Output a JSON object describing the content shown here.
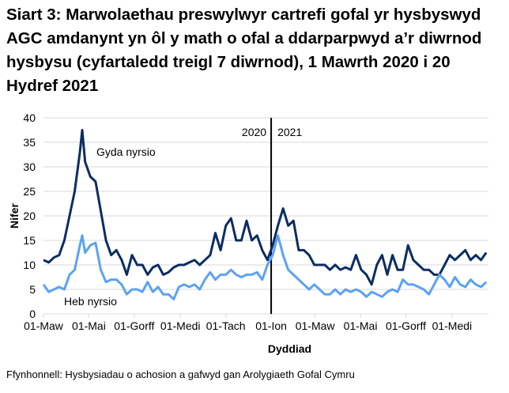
{
  "title": "Siart 3: Marwolaethau preswylwyr cartrefi gofal yr hysbyswyd AGC amdanynt yn ôl y math o ofal a ddarparpwyd a’r diwrnod hysbysu (cyfartaledd treigl 7 diwrnod), 1 Mawrth 2020 i 20 Hydref 2021",
  "source": "Ffynhonnell: Hysbysiadau o achosion a gafwyd gan Arolygiaeth Gofal Cymru",
  "chart_data": {
    "type": "line",
    "xlabel": "Dyddiad",
    "ylabel": "Nifer",
    "ylim": [
      0,
      40
    ],
    "yticks": [
      0,
      5,
      10,
      15,
      20,
      25,
      30,
      35,
      40
    ],
    "xlim": [
      "2020-03-01",
      "2021-10-20"
    ],
    "xticks": [
      {
        "date": "2020-03-01",
        "label": "01-Maw"
      },
      {
        "date": "2020-05-01",
        "label": "01-Mai"
      },
      {
        "date": "2020-07-01",
        "label": "01-Gorff"
      },
      {
        "date": "2020-09-01",
        "label": "01-Medi"
      },
      {
        "date": "2020-11-01",
        "label": "01-Tach"
      },
      {
        "date": "2021-01-01",
        "label": "01-Ion"
      },
      {
        "date": "2021-03-01",
        "label": "01-Maw"
      },
      {
        "date": "2021-05-01",
        "label": "01-Mai"
      },
      {
        "date": "2021-07-01",
        "label": "01-Gorff"
      },
      {
        "date": "2021-09-01",
        "label": "01-Medi"
      }
    ],
    "grid": true,
    "divider": {
      "date": "2021-01-01",
      "left_label": "2020",
      "right_label": "2021"
    },
    "x": [
      "2020-03-01",
      "2020-03-08",
      "2020-03-15",
      "2020-03-22",
      "2020-03-29",
      "2020-04-05",
      "2020-04-12",
      "2020-04-19",
      "2020-04-22",
      "2020-04-26",
      "2020-05-03",
      "2020-05-10",
      "2020-05-17",
      "2020-05-24",
      "2020-05-31",
      "2020-06-07",
      "2020-06-14",
      "2020-06-21",
      "2020-06-28",
      "2020-07-05",
      "2020-07-12",
      "2020-07-19",
      "2020-07-26",
      "2020-08-02",
      "2020-08-09",
      "2020-08-16",
      "2020-08-23",
      "2020-08-30",
      "2020-09-06",
      "2020-09-13",
      "2020-09-20",
      "2020-09-27",
      "2020-10-04",
      "2020-10-11",
      "2020-10-18",
      "2020-10-25",
      "2020-11-01",
      "2020-11-08",
      "2020-11-15",
      "2020-11-22",
      "2020-11-29",
      "2020-12-06",
      "2020-12-13",
      "2020-12-20",
      "2020-12-27",
      "2021-01-03",
      "2021-01-10",
      "2021-01-17",
      "2021-01-24",
      "2021-01-31",
      "2021-02-07",
      "2021-02-14",
      "2021-02-21",
      "2021-02-28",
      "2021-03-07",
      "2021-03-14",
      "2021-03-21",
      "2021-03-28",
      "2021-04-04",
      "2021-04-11",
      "2021-04-18",
      "2021-04-25",
      "2021-05-02",
      "2021-05-09",
      "2021-05-16",
      "2021-05-23",
      "2021-05-30",
      "2021-06-06",
      "2021-06-13",
      "2021-06-20",
      "2021-06-27",
      "2021-07-04",
      "2021-07-11",
      "2021-07-18",
      "2021-07-25",
      "2021-08-01",
      "2021-08-08",
      "2021-08-15",
      "2021-08-22",
      "2021-08-29",
      "2021-09-05",
      "2021-09-12",
      "2021-09-19",
      "2021-09-26",
      "2021-10-03",
      "2021-10-10",
      "2021-10-17"
    ],
    "series": [
      {
        "name": "Gyda nyrsio",
        "color": "#0b2d63",
        "values": [
          11,
          10.5,
          11.5,
          12,
          15,
          20,
          25,
          33,
          37.5,
          31,
          28,
          27,
          21,
          15,
          12,
          13,
          11,
          8,
          12,
          10,
          10,
          8,
          9.5,
          10,
          8,
          8.5,
          9.5,
          10,
          10,
          10.5,
          11,
          10,
          11,
          12,
          16.5,
          13,
          18,
          19.5,
          15,
          15,
          19,
          15,
          16,
          13,
          11,
          14,
          18,
          21.5,
          18,
          19,
          13,
          13,
          12,
          10,
          10,
          10,
          9,
          10,
          9,
          9.5,
          9,
          12,
          9,
          8,
          6,
          10,
          12,
          8,
          12,
          9,
          9,
          14,
          11,
          10,
          9,
          9,
          8,
          8,
          10,
          12,
          11,
          12,
          13,
          11,
          12,
          11,
          12.5
        ]
      },
      {
        "name": "Heb nyrsio",
        "color": "#5ba2f5",
        "values": [
          6,
          4.5,
          5,
          5.5,
          5,
          8,
          9,
          14,
          16,
          12.5,
          14,
          14.5,
          9,
          6.5,
          7,
          7,
          6,
          4,
          5,
          5,
          4.5,
          6.5,
          4.5,
          5.5,
          4,
          4,
          3,
          5.5,
          6,
          5.5,
          6,
          5,
          7,
          8.5,
          7,
          8,
          8,
          9,
          8,
          7.5,
          8,
          8,
          8.5,
          7,
          10,
          12,
          16,
          12,
          9,
          8,
          7,
          6,
          5,
          6,
          5,
          4,
          4,
          5,
          4,
          5,
          4.5,
          5,
          4.5,
          3.5,
          4.5,
          4,
          3.5,
          4.5,
          5,
          4.5,
          7,
          6,
          6,
          5.5,
          5,
          4,
          6,
          8,
          7,
          5.5,
          7.5,
          6,
          5.5,
          7,
          6,
          5.5,
          6.5
        ]
      }
    ]
  }
}
